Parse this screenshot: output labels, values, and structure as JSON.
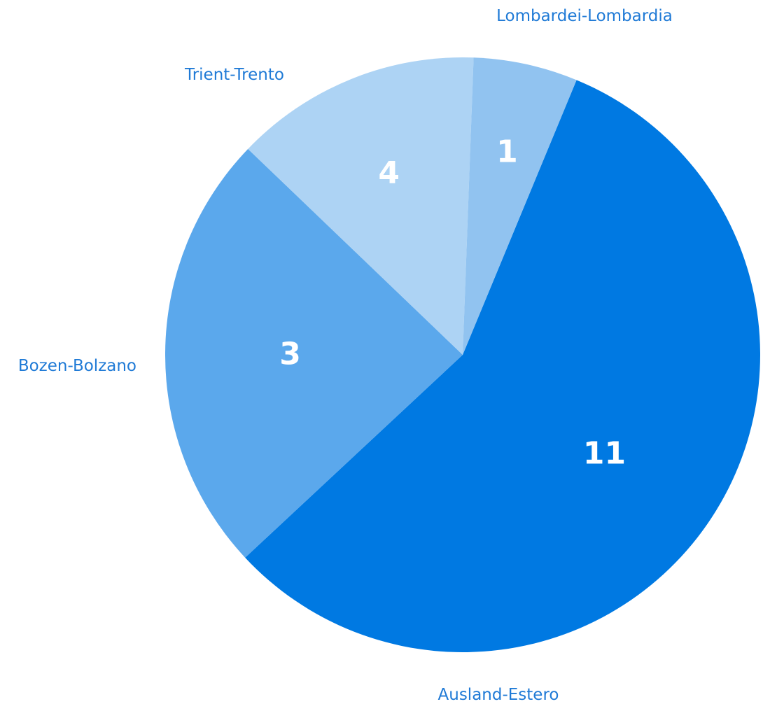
{
  "chart_data": {
    "type": "pie",
    "slices": [
      {
        "label": "Ausland-Estero",
        "value": 11,
        "color": "#0079e2"
      },
      {
        "label": "Bozen-Bolzano",
        "value": 3,
        "color": "#5ba8ec"
      },
      {
        "label": "Trient-Trento",
        "value": 4,
        "color": "#add3f4"
      },
      {
        "label": "Lombardei-Lombardia",
        "value": 1,
        "color": "#91c3f0"
      }
    ],
    "label_color": "#1f7ad6",
    "legend": "none",
    "data_labels": "inside"
  }
}
